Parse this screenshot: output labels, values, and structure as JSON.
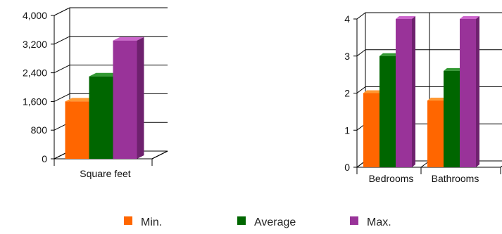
{
  "chart_data": [
    {
      "type": "bar",
      "categories": [
        "Square feet"
      ],
      "series": [
        {
          "name": "Min.",
          "values": [
            1600
          ]
        },
        {
          "name": "Average",
          "values": [
            2300
          ]
        },
        {
          "name": "Max.",
          "values": [
            3300
          ]
        }
      ],
      "ylim": [
        0,
        4000
      ],
      "yticks": [
        "0",
        "800",
        "1,600",
        "2,400",
        "3,200",
        "4,000"
      ],
      "grid": true,
      "style": "3d"
    },
    {
      "type": "bar",
      "categories": [
        "Bedrooms",
        "Bathrooms"
      ],
      "series": [
        {
          "name": "Min.",
          "values": [
            2.0,
            1.8
          ]
        },
        {
          "name": "Average",
          "values": [
            3.0,
            2.6
          ]
        },
        {
          "name": "Max.",
          "values": [
            4.0,
            4.0
          ]
        }
      ],
      "ylim": [
        0,
        4
      ],
      "yticks": [
        "0",
        "1",
        "2",
        "3",
        "4"
      ],
      "grid": true,
      "style": "3d"
    }
  ],
  "legend": {
    "placement": "bottom",
    "items": [
      {
        "label": "Min.",
        "color": "#ff6600"
      },
      {
        "label": "Average",
        "color": "#006600"
      },
      {
        "label": "Max.",
        "color": "#993399"
      }
    ]
  },
  "colors": {
    "min": {
      "front": "#ff6600",
      "top": "#ff9933",
      "side": "#cc5200"
    },
    "average": {
      "front": "#006600",
      "top": "#339933",
      "side": "#004d00"
    },
    "max": {
      "front": "#993399",
      "top": "#cc66cc",
      "side": "#6e216e"
    }
  }
}
